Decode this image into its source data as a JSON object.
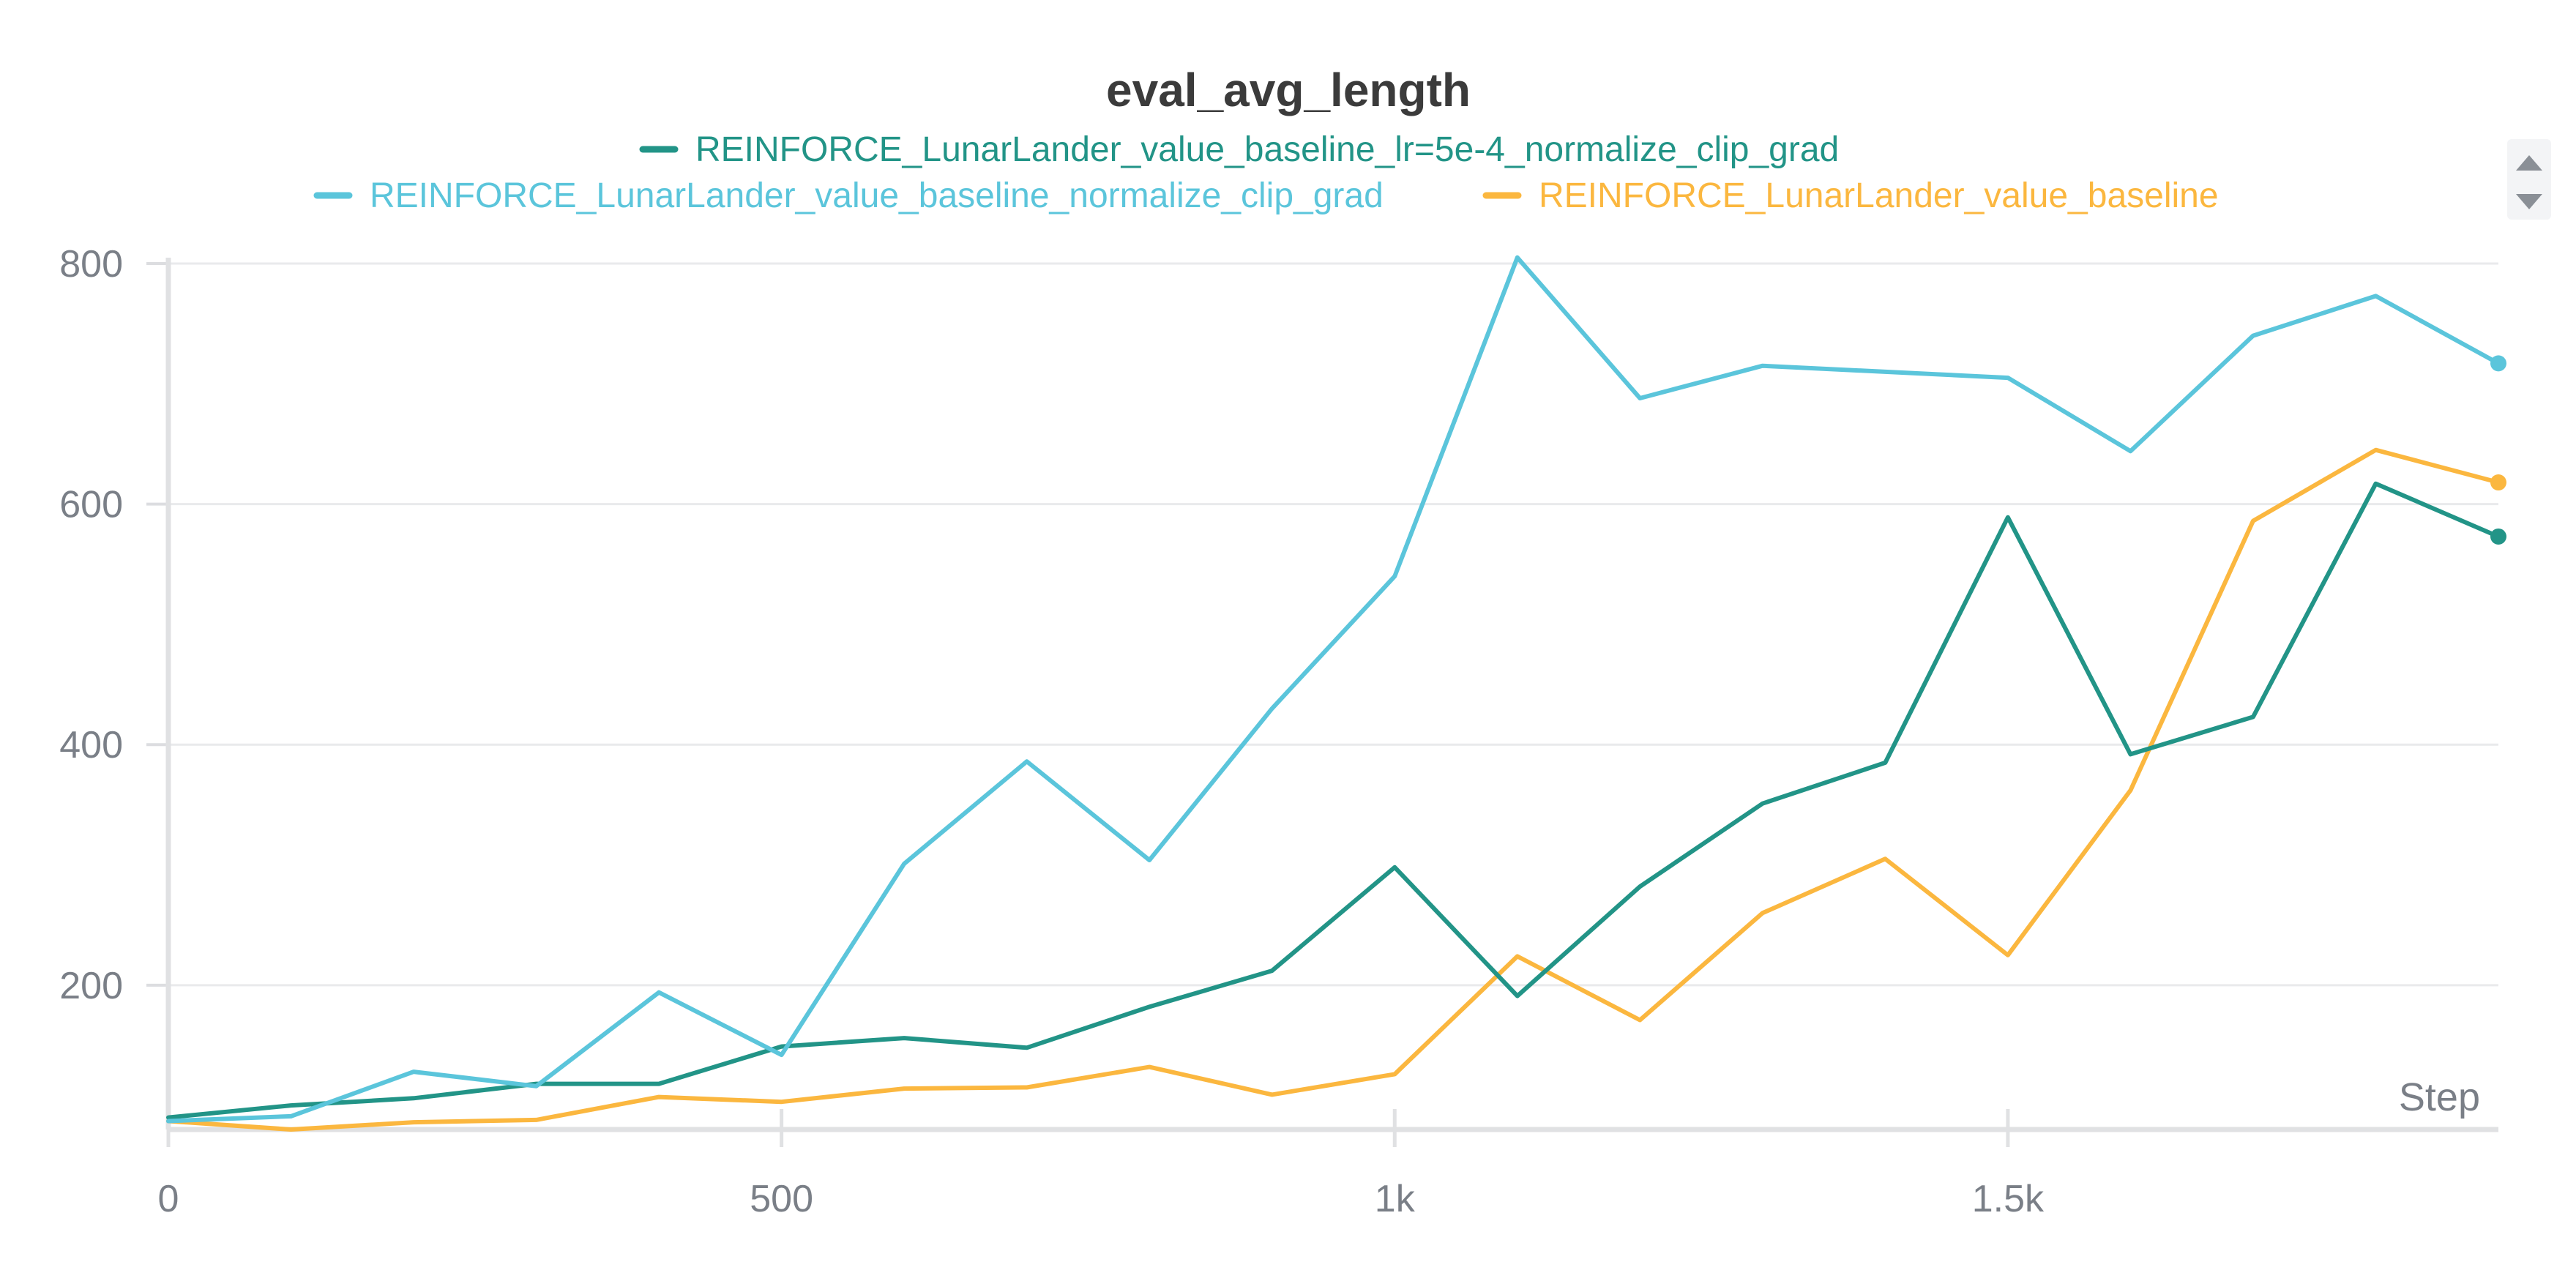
{
  "chart_data": {
    "type": "line",
    "title": "eval_avg_length",
    "xlabel": "Step",
    "ylabel": "",
    "xlim": [
      0,
      1900
    ],
    "ylim": [
      80,
      810
    ],
    "x_ticks": [
      0,
      500,
      1000,
      1500
    ],
    "x_tick_labels": [
      "0",
      "500",
      "1k",
      "1.5k"
    ],
    "y_ticks": [
      200,
      400,
      600,
      800
    ],
    "y_tick_labels": [
      "200",
      "400",
      "600",
      "800"
    ],
    "grid": true,
    "legend_position": "top-center",
    "series": [
      {
        "name": "REINFORCE_LunarLander_value_baseline_lr=5e-4_normalize_clip_grad",
        "color": "#229487",
        "x": [
          0,
          100,
          200,
          300,
          400,
          500,
          600,
          700,
          800,
          900,
          1000,
          1100,
          1200,
          1300,
          1400,
          1500,
          1600,
          1700,
          1800,
          1900
        ],
        "y": [
          90,
          100,
          106,
          118,
          118,
          149,
          156,
          148,
          182,
          212,
          298,
          191,
          282,
          351,
          385,
          589,
          392,
          423,
          617,
          573
        ]
      },
      {
        "name": "REINFORCE_LunarLander_value_baseline_normalize_clip_grad",
        "color": "#5bc5db",
        "x": [
          0,
          100,
          200,
          300,
          400,
          500,
          600,
          700,
          800,
          900,
          1000,
          1100,
          1200,
          1300,
          1400,
          1500,
          1600,
          1700,
          1800,
          1900
        ],
        "y": [
          87,
          91,
          128,
          116,
          194,
          142,
          301,
          386,
          304,
          430,
          540,
          805,
          688,
          715,
          710,
          705,
          644,
          740,
          773,
          717
        ]
      },
      {
        "name": "REINFORCE_LunarLander_value_baseline",
        "color": "#fbb73f",
        "x": [
          0,
          100,
          200,
          300,
          400,
          500,
          600,
          700,
          800,
          900,
          1000,
          1100,
          1200,
          1300,
          1400,
          1500,
          1600,
          1700,
          1800,
          1900
        ],
        "y": [
          87,
          80,
          86,
          88,
          107,
          103,
          114,
          115,
          132,
          109,
          126,
          224,
          171,
          260,
          305,
          225,
          362,
          586,
          645,
          618
        ]
      }
    ]
  }
}
